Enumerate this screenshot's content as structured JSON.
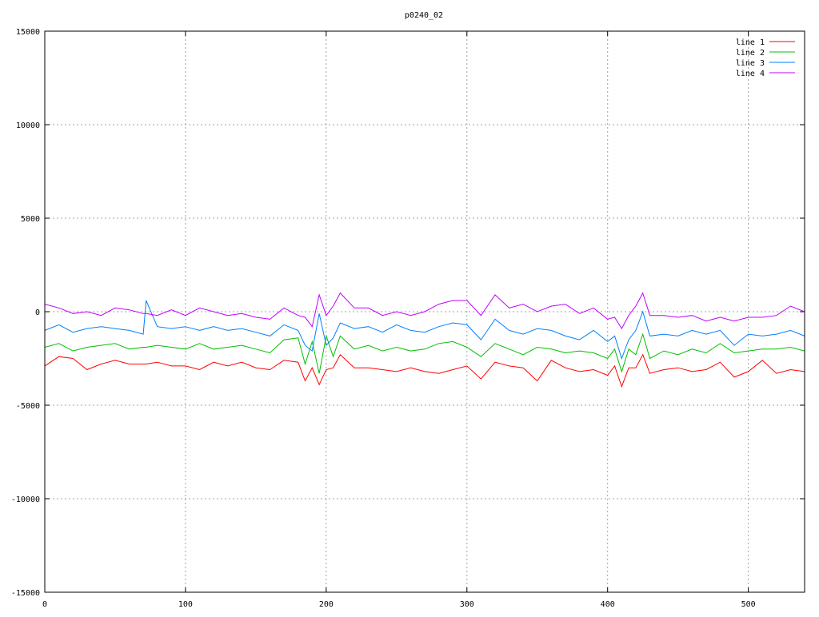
{
  "chart_data": {
    "type": "line",
    "title": "p0240_02",
    "xlabel": "",
    "ylabel": "",
    "xlim": [
      0,
      540
    ],
    "ylim": [
      -15000,
      15000
    ],
    "xticks": [
      0,
      100,
      200,
      300,
      400,
      500
    ],
    "yticks": [
      -15000,
      -10000,
      -5000,
      0,
      5000,
      10000,
      15000
    ],
    "grid": true,
    "legend_position": "top-right",
    "x": [
      0,
      10,
      20,
      30,
      40,
      50,
      60,
      70,
      72,
      80,
      90,
      100,
      110,
      120,
      130,
      140,
      150,
      160,
      170,
      180,
      185,
      190,
      195,
      200,
      205,
      210,
      220,
      230,
      240,
      250,
      260,
      270,
      280,
      290,
      300,
      310,
      320,
      330,
      340,
      350,
      360,
      370,
      380,
      390,
      400,
      405,
      410,
      415,
      420,
      425,
      430,
      440,
      450,
      460,
      470,
      480,
      490,
      500,
      510,
      520,
      530,
      540
    ],
    "series": [
      {
        "name": "line 1",
        "color": "#ff0000",
        "values": [
          -2900,
          -2400,
          -2500,
          -3100,
          -2800,
          -2600,
          -2800,
          -2800,
          -2800,
          -2700,
          -2900,
          -2900,
          -3100,
          -2700,
          -2900,
          -2700,
          -3000,
          -3100,
          -2600,
          -2700,
          -3700,
          -3000,
          -3900,
          -3100,
          -3000,
          -2300,
          -3000,
          -3000,
          -3100,
          -3200,
          -3000,
          -3200,
          -3300,
          -3100,
          -2900,
          -3600,
          -2700,
          -2900,
          -3000,
          -3700,
          -2600,
          -3000,
          -3200,
          -3100,
          -3400,
          -2900,
          -4000,
          -3000,
          -3000,
          -2300,
          -3300,
          -3100,
          -3000,
          -3200,
          -3100,
          -2700,
          -3500,
          -3200,
          -2600,
          -3300,
          -3100,
          -3200
        ]
      },
      {
        "name": "line 2",
        "color": "#00c000",
        "values": [
          -1900,
          -1700,
          -2100,
          -1900,
          -1800,
          -1700,
          -2000,
          -1900,
          -1900,
          -1800,
          -1900,
          -2000,
          -1700,
          -2000,
          -1900,
          -1800,
          -2000,
          -2200,
          -1500,
          -1400,
          -2800,
          -1600,
          -3300,
          -1300,
          -2400,
          -1300,
          -2000,
          -1800,
          -2100,
          -1900,
          -2100,
          -2000,
          -1700,
          -1600,
          -1900,
          -2400,
          -1700,
          -2000,
          -2300,
          -1900,
          -2000,
          -2200,
          -2100,
          -2200,
          -2500,
          -2000,
          -3200,
          -2000,
          -2300,
          -1200,
          -2500,
          -2100,
          -2300,
          -2000,
          -2200,
          -1700,
          -2200,
          -2100,
          -2000,
          -2000,
          -1900,
          -2100
        ]
      },
      {
        "name": "line 3",
        "color": "#0080ff",
        "values": [
          -1000,
          -700,
          -1100,
          -900,
          -800,
          -900,
          -1000,
          -1200,
          600,
          -800,
          -900,
          -800,
          -1000,
          -800,
          -1000,
          -900,
          -1100,
          -1300,
          -700,
          -1000,
          -1800,
          -2100,
          -100,
          -1800,
          -1400,
          -600,
          -900,
          -800,
          -1100,
          -700,
          -1000,
          -1100,
          -800,
          -600,
          -700,
          -1500,
          -400,
          -1000,
          -1200,
          -900,
          -1000,
          -1300,
          -1500,
          -1000,
          -1600,
          -1300,
          -2500,
          -1500,
          -1000,
          0,
          -1300,
          -1200,
          -1300,
          -1000,
          -1200,
          -1000,
          -1800,
          -1200,
          -1300,
          -1200,
          -1000,
          -1300
        ]
      },
      {
        "name": "line 4",
        "color": "#c000ff",
        "values": [
          400,
          200,
          -100,
          0,
          -200,
          200,
          100,
          -100,
          -100,
          -200,
          100,
          -200,
          200,
          0,
          -200,
          -100,
          -300,
          -400,
          200,
          -200,
          -300,
          -800,
          900,
          -200,
          300,
          1000,
          200,
          200,
          -200,
          0,
          -200,
          0,
          400,
          600,
          600,
          -200,
          900,
          200,
          400,
          0,
          300,
          400,
          -100,
          200,
          -400,
          -300,
          -900,
          -200,
          300,
          1000,
          -200,
          -200,
          -300,
          -200,
          -500,
          -300,
          -500,
          -300,
          -300,
          -200,
          300,
          0
        ]
      }
    ]
  }
}
